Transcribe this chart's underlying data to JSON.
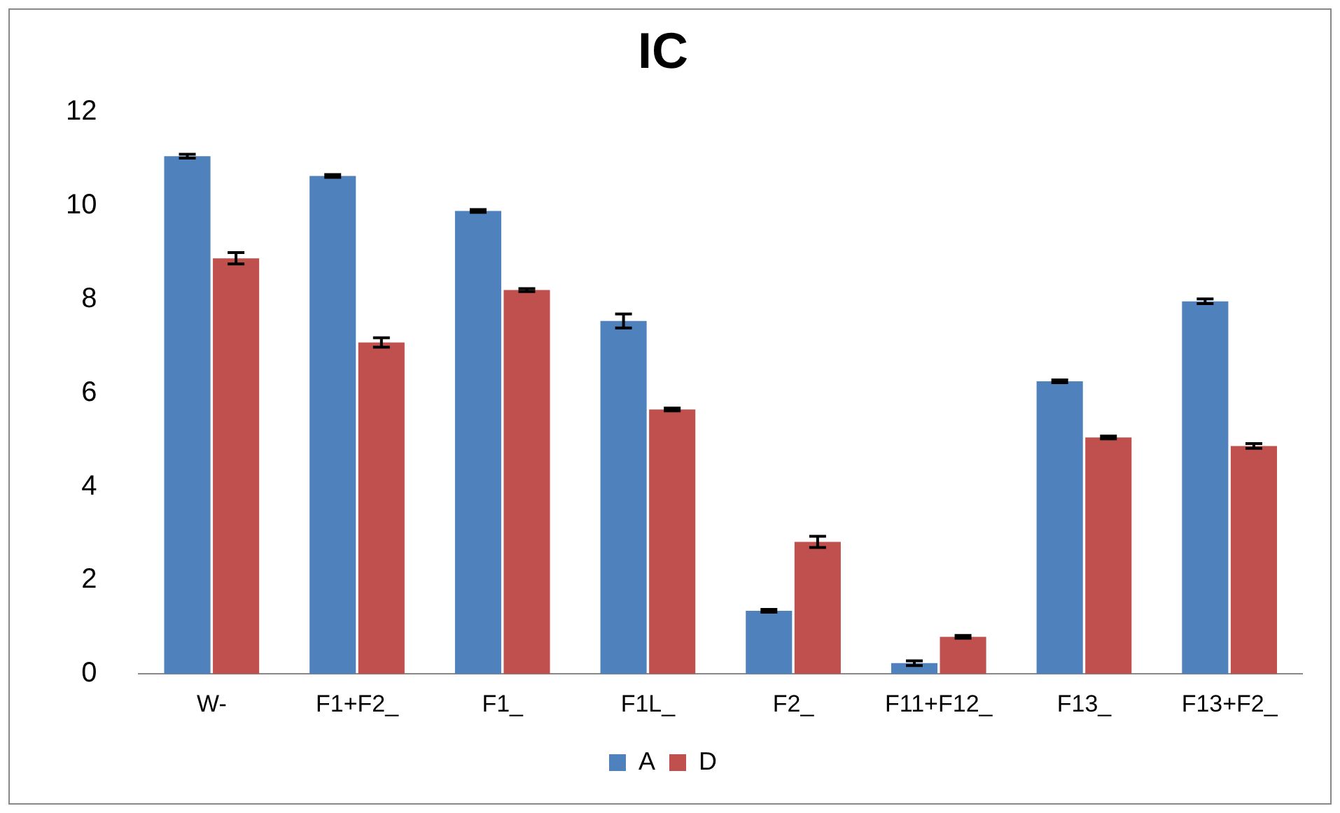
{
  "chart_data": {
    "type": "bar",
    "title": "IC",
    "categories": [
      "W-",
      "F1+F2_",
      "F1_",
      "F1L_",
      "F2_",
      "F11+F12_",
      "F13_",
      "F13+F2_"
    ],
    "series": [
      {
        "name": "A",
        "color": "#4f81bd",
        "values": [
          11.06,
          10.64,
          9.89,
          7.54,
          1.35,
          0.23,
          6.25,
          7.96
        ],
        "errors": [
          0.04,
          0.03,
          0.03,
          0.15,
          0.03,
          0.05,
          0.03,
          0.05
        ]
      },
      {
        "name": "D",
        "color": "#c0504d",
        "values": [
          8.88,
          7.08,
          8.2,
          5.65,
          2.82,
          0.79,
          5.05,
          4.87
        ],
        "errors": [
          0.12,
          0.1,
          0.03,
          0.03,
          0.12,
          0.03,
          0.03,
          0.05
        ]
      }
    ],
    "ylim": [
      0,
      12
    ],
    "yticks": [
      0,
      2,
      4,
      6,
      8,
      10,
      12
    ],
    "grid": false,
    "legend": "bottom"
  }
}
